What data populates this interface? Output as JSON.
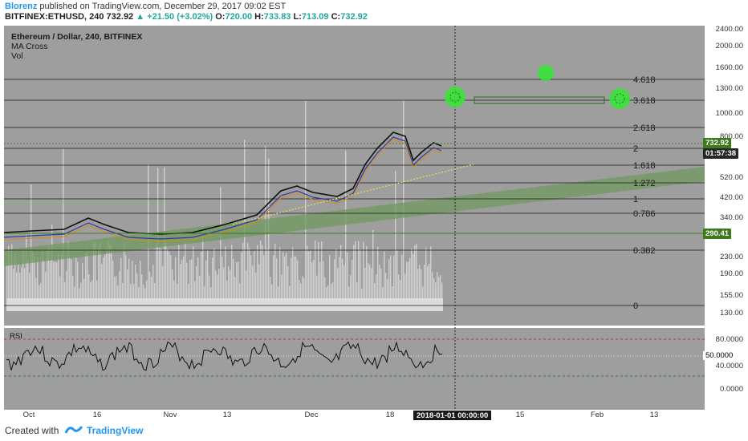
{
  "header": {
    "author": "Blorenz",
    "published": "published on TradingView.com, December 29, 2017 09:02 EST",
    "symbol": "BITFINEX:ETHUSD, 240",
    "last": "732.92",
    "change": "+21.50 (+3.02%)",
    "o_label": "O:",
    "o_val": "720.00",
    "h_label": "H:",
    "h_val": "733.83",
    "l_label": "L:",
    "l_val": "713.09",
    "c_label": "C:",
    "c_val": "732.92"
  },
  "legend": {
    "title": "Ethereum / Dollar, 240, BITFINEX",
    "study1": "MA Cross",
    "study2": "Vol"
  },
  "price_axis": [
    "2400.00",
    "2000.00",
    "1600.00",
    "1300.00",
    "1000.00",
    "800.00",
    "520.00",
    "420.00",
    "340.00",
    "230.00",
    "190.00",
    "155.00",
    "130.00"
  ],
  "price_tags": {
    "last": "732.92",
    "timer": "01:57:38",
    "level": "290.41"
  },
  "fib_levels": [
    "4.618",
    "3.618",
    "2.618",
    "2",
    "1.618",
    "1.272",
    "1",
    "0.786",
    "0.382",
    "0"
  ],
  "rsi": {
    "label": "RSI",
    "axis": [
      "80.0000",
      "40.0000",
      "0.0000"
    ],
    "value": "50.0000"
  },
  "time_axis": [
    "Oct",
    "16",
    "Nov",
    "13",
    "Dec",
    "18",
    "15",
    "Feb",
    "13"
  ],
  "cursor_date": "2018-01-01 00:00:00",
  "footer": {
    "created": "Created with",
    "brand": "TradingView"
  },
  "colors": {
    "chart_bg": "#9e9e9e",
    "tag_green": "#3d7a1e",
    "tag_dark": "#262626",
    "marker": "#33dd33"
  }
}
